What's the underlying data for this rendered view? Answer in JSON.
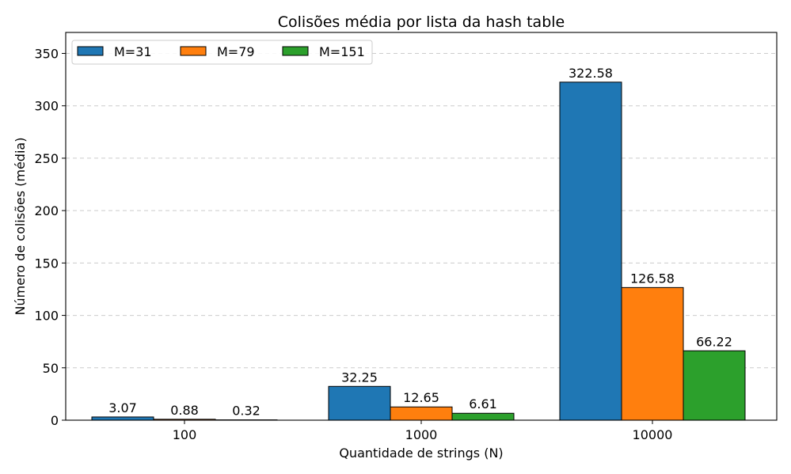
{
  "chart_data": {
    "type": "bar",
    "title": "Colisões média por lista da hash table",
    "xlabel": "Quantidade de strings (N)",
    "ylabel": "Número de colisões (média)",
    "categories": [
      "100",
      "1000",
      "10000"
    ],
    "series": [
      {
        "name": "M=31",
        "values": [
          3.07,
          32.25,
          322.58
        ],
        "color": "#1f77b4"
      },
      {
        "name": "M=79",
        "values": [
          0.88,
          12.65,
          126.58
        ],
        "color": "#ff7f0e"
      },
      {
        "name": "M=151",
        "values": [
          0.32,
          6.61,
          66.22
        ],
        "color": "#2ca02c"
      }
    ],
    "ylim": [
      0,
      370
    ],
    "yticks": [
      0,
      50,
      100,
      150,
      200,
      250,
      300,
      350
    ],
    "grid": "y-dashed",
    "legend": "top-left"
  }
}
